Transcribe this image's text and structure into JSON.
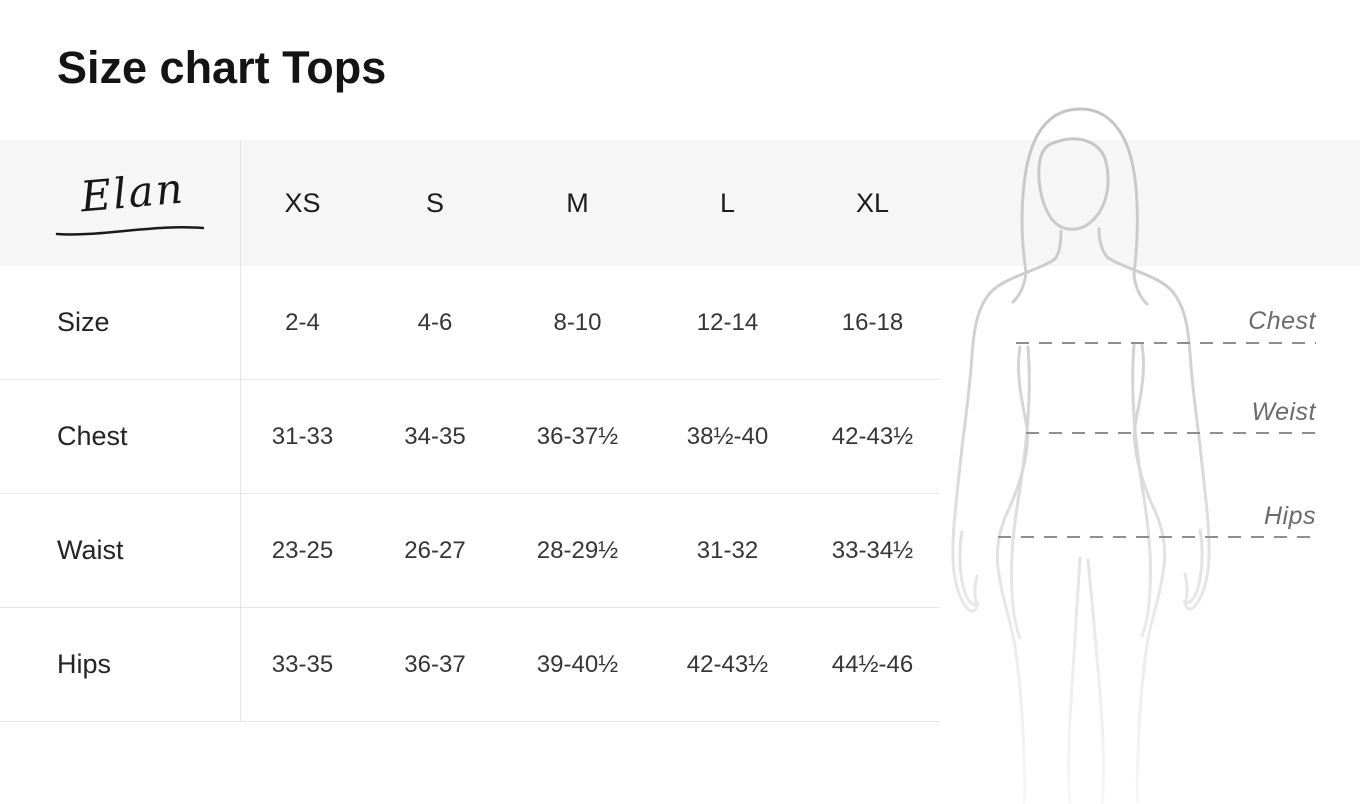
{
  "page": {
    "title": "Size chart Tops"
  },
  "brand": {
    "name": "Elan"
  },
  "chart_data": {
    "type": "table",
    "title": "Size chart Tops",
    "columns": [
      "XS",
      "S",
      "M",
      "L",
      "XL"
    ],
    "rows": [
      {
        "label": "Size",
        "values": [
          "2-4",
          "4-6",
          "8-10",
          "12-14",
          "16-18"
        ]
      },
      {
        "label": "Chest",
        "values": [
          "31-33",
          "34-35",
          "36-37½",
          "38½-40",
          "42-43½"
        ]
      },
      {
        "label": "Waist",
        "values": [
          "23-25",
          "26-27",
          "28-29½",
          "31-32",
          "33-34½"
        ]
      },
      {
        "label": "Hips",
        "values": [
          "33-35",
          "36-37",
          "39-40½",
          "42-43½",
          "44½-46"
        ]
      }
    ]
  },
  "figure": {
    "measurement_labels": {
      "chest": "Chest",
      "waist": "Weist",
      "hips": "Hips"
    }
  },
  "colors": {
    "header_band": "#f6f6f6",
    "row_border": "#e8e8e8",
    "divider": "#e4e4e4",
    "text_primary": "#1c1c1c",
    "text_values": "#363636",
    "figure_outline_top": "#c4c4c4",
    "figure_outline_bottom": "#f6f6f6",
    "dash_line": "#8e8e8e",
    "measure_label_gray": "#6b6b6b"
  }
}
